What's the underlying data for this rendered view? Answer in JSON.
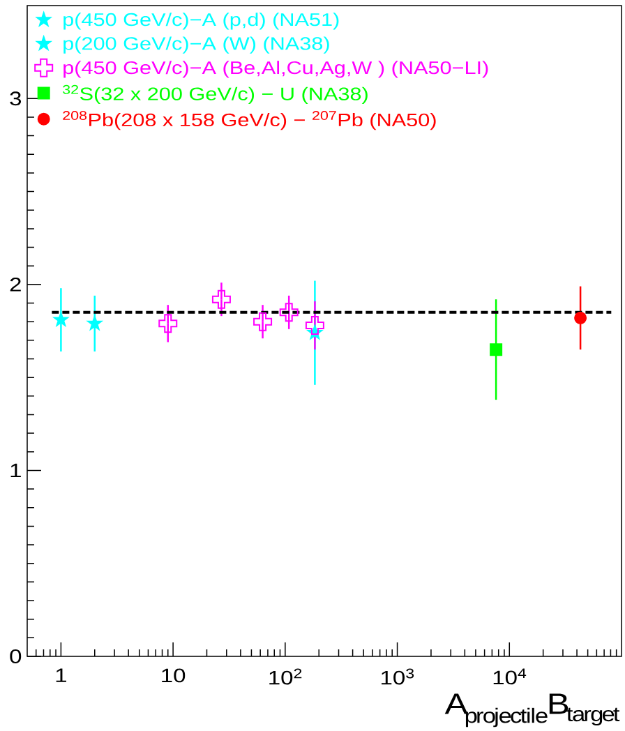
{
  "chart_data": {
    "type": "scatter",
    "xlabel": "\\mathrm{A}_{\\mathrm{projectile}}\\mathrm{B}_{\\mathrm{target}}",
    "log": "x",
    "xlim": [
      0.5,
      100000
    ],
    "ylim": [
      0,
      3.5
    ],
    "xticks": [
      1,
      10,
      {
        "value": 100,
        "label": "10$^{2}$"
      },
      {
        "value": 1000,
        "label": "10$^{3}$"
      },
      {
        "value": 10000,
        "label": "10$^{4}$"
      }
    ],
    "yticks": [
      0,
      1,
      2,
      3
    ],
    "legend": "top left",
    "series": [
      {
        "name": "p(450 GeV/c)−A (p,d) (NA51)",
        "color": "#00ffff",
        "marker": "star",
        "x": [
          1,
          2
        ],
        "values": [
          1.81,
          1.79
        ],
        "errors": [
          0.17,
          0.15
        ]
      },
      {
        "name": "p(200 GeV/c)−A (W) (NA38)",
        "color": "#00ffff",
        "marker": "star",
        "x": [
          184
        ],
        "values": [
          1.74
        ],
        "errors": [
          0.28
        ]
      },
      {
        "name": "p(450 GeV/c)−A (Be,Al,Cu,Ag,W ) (NA50−LI)",
        "color": "#ff00ff",
        "marker": "cross",
        "x": [
          9,
          27,
          63,
          108,
          184
        ],
        "values": [
          1.79,
          1.92,
          1.8,
          1.85,
          1.78
        ],
        "errors": [
          0.1,
          0.09,
          0.09,
          0.09,
          0.13
        ]
      },
      {
        "name": "$^{32}$S(32 x 200 GeV/c) − U (NA38)",
        "color": "#00ff00",
        "marker": "square",
        "x": [
          7600
        ],
        "values": [
          1.65
        ],
        "errors": [
          0.27
        ]
      },
      {
        "name": "$^{208}$Pb(208 x 158 GeV/c) − $^{207}$Pb (NA50)",
        "color": "#ff0000",
        "marker": "circle",
        "x": [
          43000
        ],
        "values": [
          1.82
        ],
        "errors": [
          0.17
        ]
      },
      {
        "type": "line",
        "color": "#000000",
        "line_style": "dashed",
        "marker": "none",
        "x": [
          0.83,
          81000
        ],
        "values": [
          1.85,
          1.85
        ]
      }
    ]
  }
}
